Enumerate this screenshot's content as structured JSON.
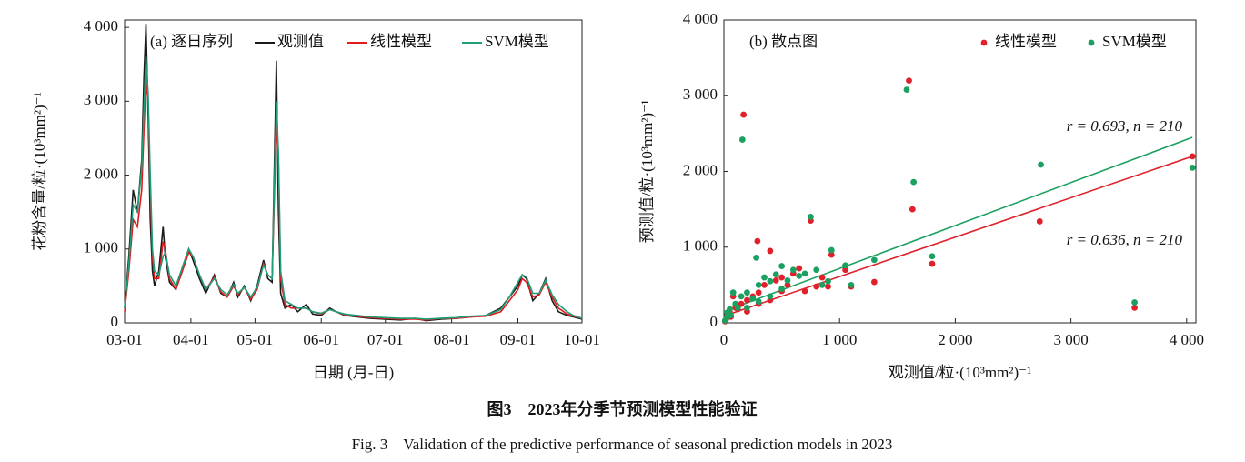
{
  "chart_data": [
    {
      "type": "line",
      "title": "(a) 逐日序列",
      "x_label": "日期 (月-日)",
      "y_label": "花粉含量/粒·(10³mm²)⁻¹",
      "xlim": [
        "03-01",
        "10-01"
      ],
      "xticks": [
        "03-01",
        "04-01",
        "05-01",
        "06-01",
        "07-01",
        "08-01",
        "09-01",
        "10-01"
      ],
      "ylim": [
        0,
        4100
      ],
      "yticks": [
        0,
        {
          "value": 1000,
          "label": "1 000"
        },
        {
          "value": 2000,
          "label": "2 000"
        },
        {
          "value": 3000,
          "label": "3 000"
        },
        {
          "value": 4000,
          "label": "4 000"
        }
      ],
      "x": [
        "03-01",
        "03-03",
        "03-05",
        "03-07",
        "03-09",
        "03-10",
        "03-11",
        "03-12",
        "03-13",
        "03-14",
        "03-15",
        "03-17",
        "03-19",
        "03-20",
        "03-22",
        "03-25",
        "03-28",
        "03-31",
        "04-02",
        "04-05",
        "04-08",
        "04-12",
        "04-15",
        "04-18",
        "04-21",
        "04-23",
        "04-26",
        "04-29",
        "05-02",
        "05-05",
        "05-07",
        "05-09",
        "05-11",
        "05-12",
        "05-13",
        "05-15",
        "05-18",
        "05-21",
        "05-25",
        "05-28",
        "06-01",
        "06-05",
        "06-08",
        "06-12",
        "06-18",
        "06-24",
        "07-01",
        "07-08",
        "07-15",
        "07-20",
        "07-27",
        "08-03",
        "08-10",
        "08-17",
        "08-24",
        "08-28",
        "09-01",
        "09-03",
        "09-05",
        "09-08",
        "09-11",
        "09-14",
        "09-17",
        "09-20",
        "09-24",
        "09-27",
        "10-01"
      ],
      "series": [
        {
          "name": "观测值",
          "color": "#1a1a1a",
          "values": [
            200,
            900,
            1800,
            1500,
            2200,
            3300,
            4050,
            2800,
            1400,
            700,
            500,
            700,
            1300,
            900,
            550,
            450,
            750,
            1000,
            850,
            600,
            400,
            650,
            400,
            350,
            550,
            350,
            500,
            300,
            500,
            850,
            600,
            550,
            3550,
            1500,
            400,
            200,
            250,
            150,
            250,
            120,
            100,
            200,
            150,
            100,
            80,
            60,
            50,
            40,
            60,
            30,
            50,
            60,
            80,
            100,
            200,
            350,
            500,
            650,
            600,
            300,
            400,
            600,
            300,
            150,
            100,
            80,
            50
          ]
        },
        {
          "name": "线性模型",
          "color": "#e31a1c",
          "values": [
            150,
            700,
            1400,
            1300,
            1800,
            2600,
            3250,
            3000,
            1800,
            900,
            600,
            600,
            1100,
            1000,
            600,
            450,
            700,
            950,
            900,
            650,
            450,
            620,
            420,
            350,
            500,
            380,
            480,
            320,
            450,
            800,
            650,
            600,
            2700,
            2200,
            600,
            250,
            200,
            200,
            200,
            150,
            120,
            180,
            150,
            110,
            90,
            70,
            60,
            50,
            50,
            40,
            60,
            60,
            80,
            90,
            150,
            300,
            450,
            600,
            550,
            350,
            380,
            550,
            350,
            200,
            120,
            90,
            60
          ]
        },
        {
          "name": "SVM模型",
          "color": "#1f9e7a",
          "values": [
            200,
            800,
            1600,
            1500,
            2100,
            2900,
            3600,
            3100,
            2000,
            1000,
            700,
            650,
            900,
            950,
            650,
            500,
            750,
            1000,
            900,
            650,
            450,
            600,
            450,
            380,
            520,
            400,
            480,
            350,
            480,
            780,
            650,
            600,
            3000,
            2300,
            700,
            300,
            250,
            200,
            200,
            150,
            130,
            180,
            150,
            120,
            100,
            80,
            70,
            60,
            60,
            50,
            60,
            70,
            90,
            100,
            180,
            350,
            550,
            650,
            620,
            400,
            400,
            580,
            380,
            250,
            150,
            100,
            60
          ]
        }
      ]
    },
    {
      "type": "scatter",
      "title": "(b) 散点图",
      "x_label": "观测值/粒·(10³mm²)⁻¹",
      "y_label": "预测值/粒·(10³mm²)⁻¹",
      "xlim": [
        0,
        4080
      ],
      "xticks": [
        0,
        {
          "value": 1000,
          "label": "1 000"
        },
        {
          "value": 2000,
          "label": "2 000"
        },
        {
          "value": 3000,
          "label": "3 000"
        },
        {
          "value": 4000,
          "label": "4 000"
        }
      ],
      "ylim": [
        0,
        4000
      ],
      "yticks": [
        0,
        {
          "value": 1000,
          "label": "1 000"
        },
        {
          "value": 2000,
          "label": "2 000"
        },
        {
          "value": 3000,
          "label": "3 000"
        },
        {
          "value": 4000,
          "label": "4 000"
        }
      ],
      "series": [
        {
          "name": "线性模型",
          "color": "#e0202a",
          "x": [
            1600,
            170,
            290,
            1630,
            2730,
            4050,
            1800,
            3550,
            750,
            930,
            400,
            1050,
            1300,
            1100,
            800,
            600,
            500,
            650,
            300,
            200,
            150,
            100,
            50,
            30,
            20,
            80,
            350,
            450,
            550,
            700,
            250,
            120,
            60,
            10,
            400,
            850,
            500,
            900,
            200,
            300
          ],
          "values": [
            3200,
            2750,
            1080,
            1500,
            1340,
            2200,
            780,
            200,
            1350,
            900,
            950,
            700,
            540,
            480,
            480,
            650,
            600,
            720,
            400,
            300,
            250,
            200,
            150,
            100,
            50,
            350,
            500,
            560,
            500,
            420,
            350,
            180,
            80,
            20,
            300,
            600,
            420,
            480,
            150,
            250
          ]
        },
        {
          "name": "SVM模型",
          "color": "#1aa060",
          "x": [
            1580,
            160,
            1640,
            2740,
            4050,
            1800,
            3550,
            750,
            930,
            1300,
            1050,
            1100,
            280,
            600,
            500,
            700,
            800,
            400,
            300,
            200,
            150,
            100,
            50,
            30,
            20,
            80,
            350,
            450,
            550,
            650,
            250,
            120,
            60,
            10,
            400,
            850,
            500,
            900,
            200,
            300
          ],
          "values": [
            3080,
            2420,
            1860,
            2090,
            2050,
            880,
            270,
            1400,
            960,
            830,
            760,
            500,
            860,
            700,
            750,
            650,
            700,
            550,
            500,
            400,
            350,
            250,
            180,
            120,
            60,
            400,
            600,
            640,
            560,
            620,
            320,
            200,
            100,
            30,
            350,
            500,
            450,
            550,
            200,
            280
          ]
        }
      ],
      "fits": [
        {
          "color": "#e0202a",
          "x": [
            0,
            4050
          ],
          "y": [
            90,
            2200
          ],
          "label": "r = 0.636, n = 210"
        },
        {
          "color": "#1aa060",
          "x": [
            0,
            4050
          ],
          "y": [
            150,
            2450
          ],
          "label": "r = 0.693, n = 210"
        }
      ]
    }
  ],
  "caption": {
    "zh": "图3　2023年分季节预测模型性能验证",
    "en": "Fig. 3　Validation of the predictive performance of seasonal prediction models in 2023"
  }
}
